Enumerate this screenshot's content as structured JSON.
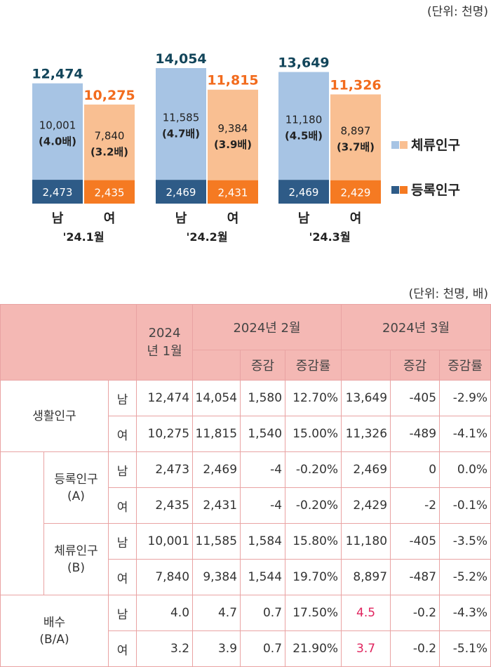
{
  "chart_data": {
    "type": "bar",
    "stacked": true,
    "unit_label": "(단위: 천명)",
    "groups": [
      {
        "label": "'24.1월",
        "bars": [
          {
            "label": "남",
            "total": "12,474",
            "registered": 2473,
            "registered_label": "2,473",
            "resident": 10001,
            "resident_label": "10,001",
            "ratio": "(4.0배)"
          },
          {
            "label": "여",
            "total": "10,275",
            "registered": 2435,
            "registered_label": "2,435",
            "resident": 7840,
            "resident_label": "7,840",
            "ratio": "(3.2배)"
          }
        ]
      },
      {
        "label": "'24.2월",
        "bars": [
          {
            "label": "남",
            "total": "14,054",
            "registered": 2469,
            "registered_label": "2,469",
            "resident": 11585,
            "resident_label": "11,585",
            "ratio": "(4.7배)"
          },
          {
            "label": "여",
            "total": "11,815",
            "registered": 2431,
            "registered_label": "2,431",
            "resident": 9384,
            "resident_label": "9,384",
            "ratio": "(3.9배)"
          }
        ]
      },
      {
        "label": "'24.3월",
        "bars": [
          {
            "label": "남",
            "total": "13,649",
            "registered": 2469,
            "registered_label": "2,469",
            "resident": 11180,
            "resident_label": "11,180",
            "ratio": "(4.5배)"
          },
          {
            "label": "여",
            "total": "11,326",
            "registered": 2429,
            "registered_label": "2,429",
            "resident": 8897,
            "resident_label": "8,897",
            "ratio": "(3.7배)"
          }
        ]
      }
    ],
    "legend": [
      {
        "name": "체류인구",
        "male_color": "#a7c4e4",
        "female_color": "#f9bf92"
      },
      {
        "name": "등록인구",
        "male_color": "#2e5b87",
        "female_color": "#f57a22"
      }
    ],
    "total_label_colors": {
      "male": "#12455a",
      "female": "#f26b1d"
    },
    "legend_position": "right",
    "ylim": [
      0,
      15000
    ]
  },
  "table": {
    "unit_label": "(단위: 천명, 배)",
    "header": {
      "jan": "2024년 1월",
      "feb": "2024년 2월",
      "mar": "2024년 3월",
      "change": "증감",
      "rate": "증감률"
    },
    "groups": [
      {
        "label": "생활인구",
        "sub": "",
        "rows": [
          {
            "sex": "남",
            "jan": "12,474",
            "feb": "14,054",
            "feb_change": "1,580",
            "feb_rate": "12.70%",
            "mar": "13,649",
            "mar_change": "-405",
            "mar_rate": "-2.9%",
            "mar_highlight": false
          },
          {
            "sex": "여",
            "jan": "10,275",
            "feb": "11,815",
            "feb_change": "1,540",
            "feb_rate": "15.00%",
            "mar": "11,326",
            "mar_change": "-489",
            "mar_rate": "-4.1%",
            "mar_highlight": false
          }
        ]
      },
      {
        "label": "등록인구",
        "sub": "(A)",
        "rows": [
          {
            "sex": "남",
            "jan": "2,473",
            "feb": "2,469",
            "feb_change": "-4",
            "feb_rate": "-0.20%",
            "mar": "2,469",
            "mar_change": "0",
            "mar_rate": "0.0%",
            "mar_highlight": false
          },
          {
            "sex": "여",
            "jan": "2,435",
            "feb": "2,431",
            "feb_change": "-4",
            "feb_rate": "-0.20%",
            "mar": "2,429",
            "mar_change": "-2",
            "mar_rate": "-0.1%",
            "mar_highlight": false
          }
        ]
      },
      {
        "label": "체류인구",
        "sub": "(B)",
        "rows": [
          {
            "sex": "남",
            "jan": "10,001",
            "feb": "11,585",
            "feb_change": "1,584",
            "feb_rate": "15.80%",
            "mar": "11,180",
            "mar_change": "-405",
            "mar_rate": "-3.5%",
            "mar_highlight": false
          },
          {
            "sex": "여",
            "jan": "7,840",
            "feb": "9,384",
            "feb_change": "1,544",
            "feb_rate": "19.70%",
            "mar": "8,897",
            "mar_change": "-487",
            "mar_rate": "-5.2%",
            "mar_highlight": false
          }
        ]
      },
      {
        "label": "배수",
        "sub": "(B/A)",
        "rows": [
          {
            "sex": "남",
            "jan": "4.0",
            "feb": "4.7",
            "feb_change": "0.7",
            "feb_rate": "17.50%",
            "mar": "4.5",
            "mar_change": "-0.2",
            "mar_rate": "-4.3%",
            "mar_highlight": true
          },
          {
            "sex": "여",
            "jan": "3.2",
            "feb": "3.9",
            "feb_change": "0.7",
            "feb_rate": "21.90%",
            "mar": "3.7",
            "mar_change": "-0.2",
            "mar_rate": "-5.1%",
            "mar_highlight": true
          }
        ]
      }
    ]
  }
}
